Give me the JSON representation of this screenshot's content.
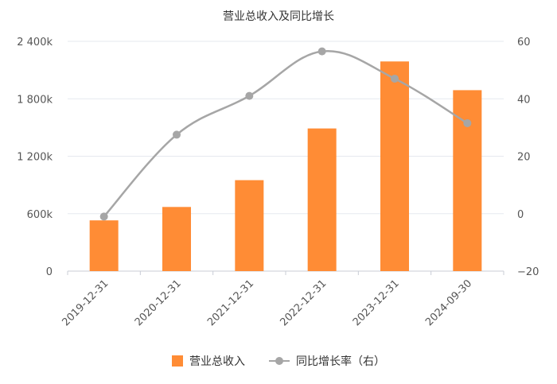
{
  "chart_data": {
    "type": "bar+line",
    "title": "营业总收入及同比增长",
    "categories": [
      "2019-12-31",
      "2020-12-31",
      "2021-12-31",
      "2022-12-31",
      "2023-12-31",
      "2024-09-30"
    ],
    "series": [
      {
        "name": "营业总收入",
        "type": "bar",
        "axis": "left",
        "values": [
          530000,
          670000,
          950000,
          1490000,
          2190000,
          1890000
        ],
        "color": "#FF8C35"
      },
      {
        "name": "同比增长率（右）",
        "type": "line",
        "axis": "right",
        "values": [
          -1,
          27.5,
          41,
          56.5,
          47,
          31.5
        ],
        "color": "#A6A6A6"
      }
    ],
    "y_left": {
      "ticks": [
        "0",
        "600k",
        "1 200k",
        "1 800k",
        "2 400k"
      ],
      "tick_values": [
        0,
        600000,
        1200000,
        1800000,
        2400000
      ],
      "range": [
        0,
        2400000
      ]
    },
    "y_right": {
      "ticks": [
        "−20",
        "0",
        "20",
        "40",
        "60"
      ],
      "tick_values": [
        -20,
        0,
        20,
        40,
        60
      ],
      "range": [
        -20,
        60
      ]
    },
    "grid": true,
    "legend_position": "bottom"
  }
}
